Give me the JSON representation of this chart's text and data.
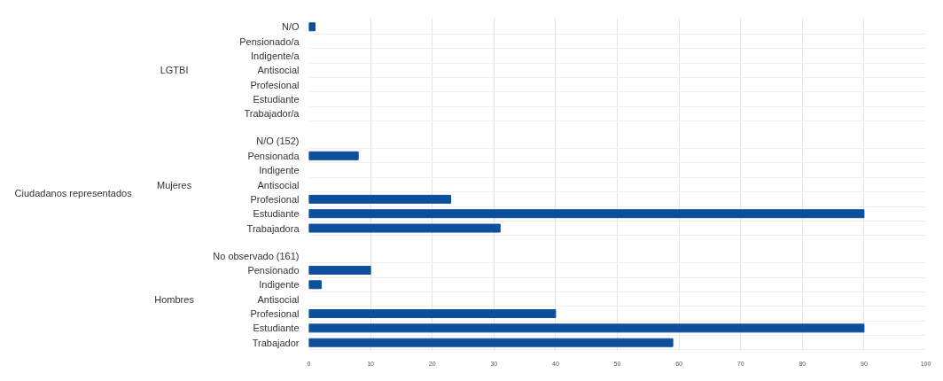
{
  "chart_data": {
    "type": "bar",
    "orientation": "horizontal",
    "categories": [
      "N/O",
      "Pensionado/a",
      "Indigente/a",
      "Antisocial",
      "Profesional",
      "Estudiante",
      "Trabajador/a",
      "N/O (152)",
      "Pensionada",
      "Indigente",
      "Antisocial",
      "Profesional",
      "Estudiante",
      "Trabajadora",
      "No observado (161)",
      "Pensionado",
      "Indigente",
      "Antisocial",
      "Profesional",
      "Estudiante",
      "Trabajador"
    ],
    "values": [
      1,
      null,
      null,
      null,
      null,
      null,
      null,
      null,
      8,
      null,
      null,
      23,
      90,
      31,
      null,
      10,
      2,
      null,
      40,
      90,
      59
    ],
    "color": "#0d4f9c",
    "xlim": [
      0,
      100
    ],
    "xticks": [
      0,
      10,
      20,
      30,
      40,
      50,
      60,
      70,
      80,
      90,
      100
    ],
    "grid": true,
    "annotations": [
      "Ciudadanos representados",
      "LGTBI",
      "Mujeres",
      "Hombres"
    ]
  }
}
